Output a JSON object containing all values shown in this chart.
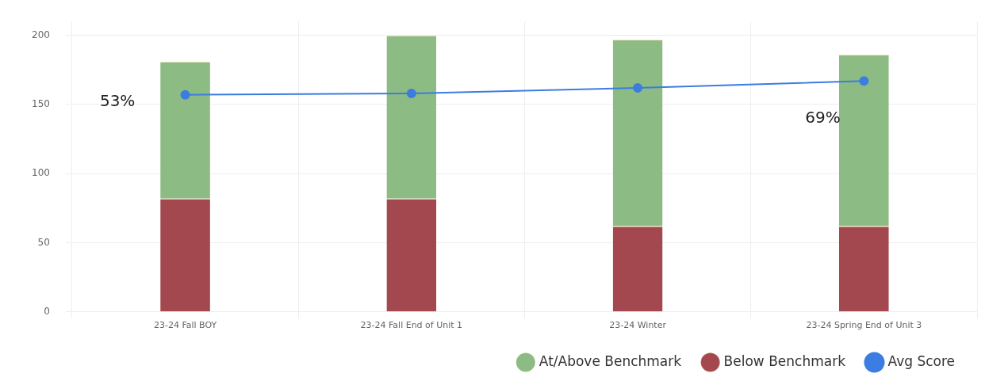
{
  "chart_data": {
    "type": "bar",
    "stacked": true,
    "categories": [
      "23-24 Fall BOY",
      "23-24 Fall End of Unit 1",
      "23-24 Winter",
      "23-24 Spring End of Unit 3"
    ],
    "series": [
      {
        "name": "Below Benchmark",
        "color": "#a4484f",
        "values": [
          82,
          82,
          62,
          62
        ]
      },
      {
        "name": "At/Above Benchmark",
        "color": "#8dbb84",
        "values": [
          99,
          118,
          135,
          124
        ]
      },
      {
        "name": "Avg Score",
        "type": "line",
        "color": "#3b7de0",
        "values": [
          157,
          158,
          162,
          167
        ]
      }
    ],
    "ylim": [
      0,
      210
    ],
    "yticks": [
      0,
      50,
      100,
      150,
      200
    ],
    "grid": true,
    "legend": "bottom right",
    "marker": "circle",
    "annotations": [
      "53%",
      "69%"
    ]
  }
}
